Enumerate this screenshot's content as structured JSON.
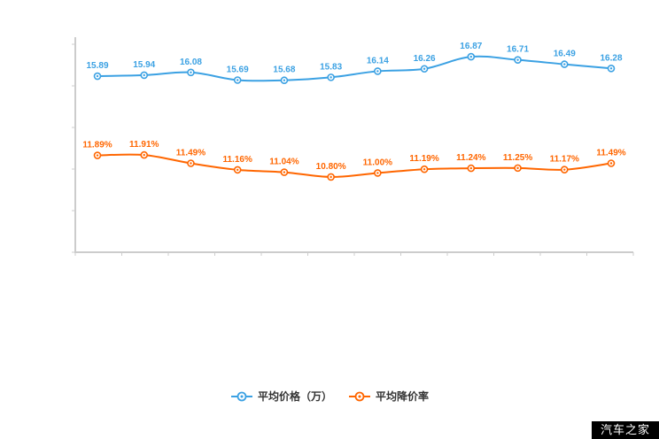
{
  "chart_data": {
    "type": "line",
    "title": "",
    "grid": false,
    "legend_position": "bottom",
    "ylim": [
      7,
      17.5
    ],
    "x_tick_labels_visible": false,
    "axis_color": "#cccccc",
    "series": [
      {
        "name": "平均价格（万）",
        "color": "#3ba1e3",
        "values": [
          15.89,
          15.94,
          16.08,
          15.69,
          15.68,
          15.83,
          16.14,
          16.26,
          16.87,
          16.71,
          16.49,
          16.28
        ],
        "labels": [
          "15.89",
          "15.94",
          "16.08",
          "15.69",
          "15.68",
          "15.83",
          "16.14",
          "16.26",
          "16.87",
          "16.71",
          "16.49",
          "16.28"
        ]
      },
      {
        "name": "平均降价率",
        "color": "#ff6600",
        "values": [
          11.89,
          11.91,
          11.49,
          11.16,
          11.04,
          10.8,
          11.0,
          11.19,
          11.24,
          11.25,
          11.17,
          11.49
        ],
        "labels": [
          "11.89%",
          "11.91%",
          "11.49%",
          "11.16%",
          "11.04%",
          "10.80%",
          "11.00%",
          "11.19%",
          "11.24%",
          "11.25%",
          "11.17%",
          "11.49%"
        ]
      }
    ]
  },
  "watermark": {
    "text": "汽车之家"
  }
}
